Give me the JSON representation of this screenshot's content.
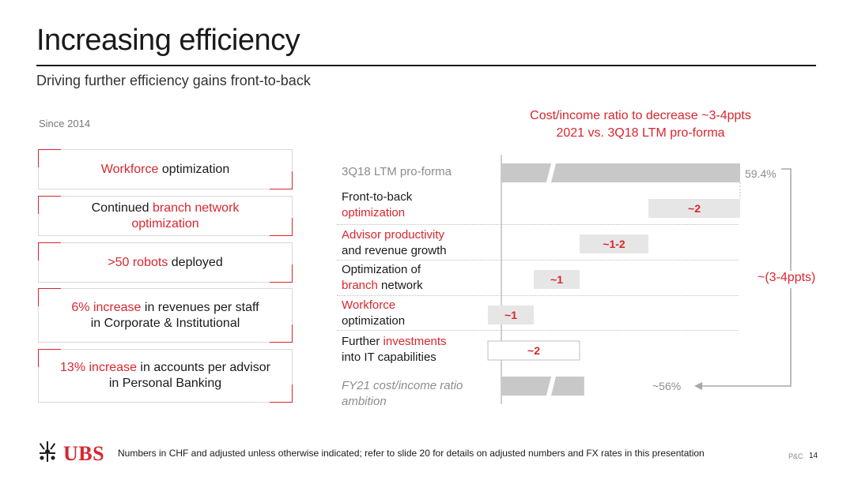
{
  "header": {
    "title": "Increasing efficiency",
    "subtitle": "Driving further efficiency gains front-to-back"
  },
  "left": {
    "since_label": "Since 2014",
    "boxes": [
      {
        "line1_red": "Workforce",
        "line1_rest": " optimization"
      },
      {
        "line1_pre": "Continued ",
        "line1_red": "branch network",
        "line2_red": "optimization"
      },
      {
        "line1_red": ">50 robots",
        "line1_rest": " deployed"
      },
      {
        "line1_red": "6% increase",
        "line1_rest": " in revenues per staff",
        "line2": "in Corporate & Institutional"
      },
      {
        "line1_red": "13% increase",
        "line1_rest": " in accounts per advisor",
        "line2": "in Personal Banking"
      }
    ]
  },
  "chart_data": {
    "type": "bar",
    "title_line1": "Cost/income ratio to decrease ~3-4ppts",
    "title_line2": "2021 vs. 3Q18 LTM pro-forma",
    "start": {
      "label": "3Q18 LTM pro-forma",
      "value_label": "59.4%",
      "value": 59.4
    },
    "steps": [
      {
        "l1": "Front-to-back",
        "l2_red": "optimization",
        "value_label": "~2",
        "value": -2
      },
      {
        "l1_red": "Advisor productivity",
        "l2": "and revenue growth",
        "value_label": "~1-2",
        "value": -1.5
      },
      {
        "l1": "Optimization of",
        "l2_red": "branch",
        "l2_rest": " network",
        "value_label": "~1",
        "value": -1
      },
      {
        "l1_red": "Workforce",
        "l2": "optimization",
        "value_label": "~1",
        "value": -1
      },
      {
        "l1_pre": "Further ",
        "l1_red": "investments",
        "l2": "into IT capabilities",
        "value_label": "~2",
        "value": 2
      }
    ],
    "end": {
      "l1": "FY21 cost/income ratio",
      "l2": "ambition",
      "value_label": "~56%",
      "value": 56
    },
    "bracket_label": "~(3-4ppts)",
    "colors": {
      "accent": "#d9262e",
      "bar": "#c8c8c8",
      "step": "#e6e6e6"
    }
  },
  "footer": {
    "brand": "UBS",
    "note": "Numbers in CHF and adjusted unless otherwise indicated; refer to slide 20 for details on adjusted numbers and FX rates in this presentation",
    "section": "P&C",
    "page": "14"
  }
}
